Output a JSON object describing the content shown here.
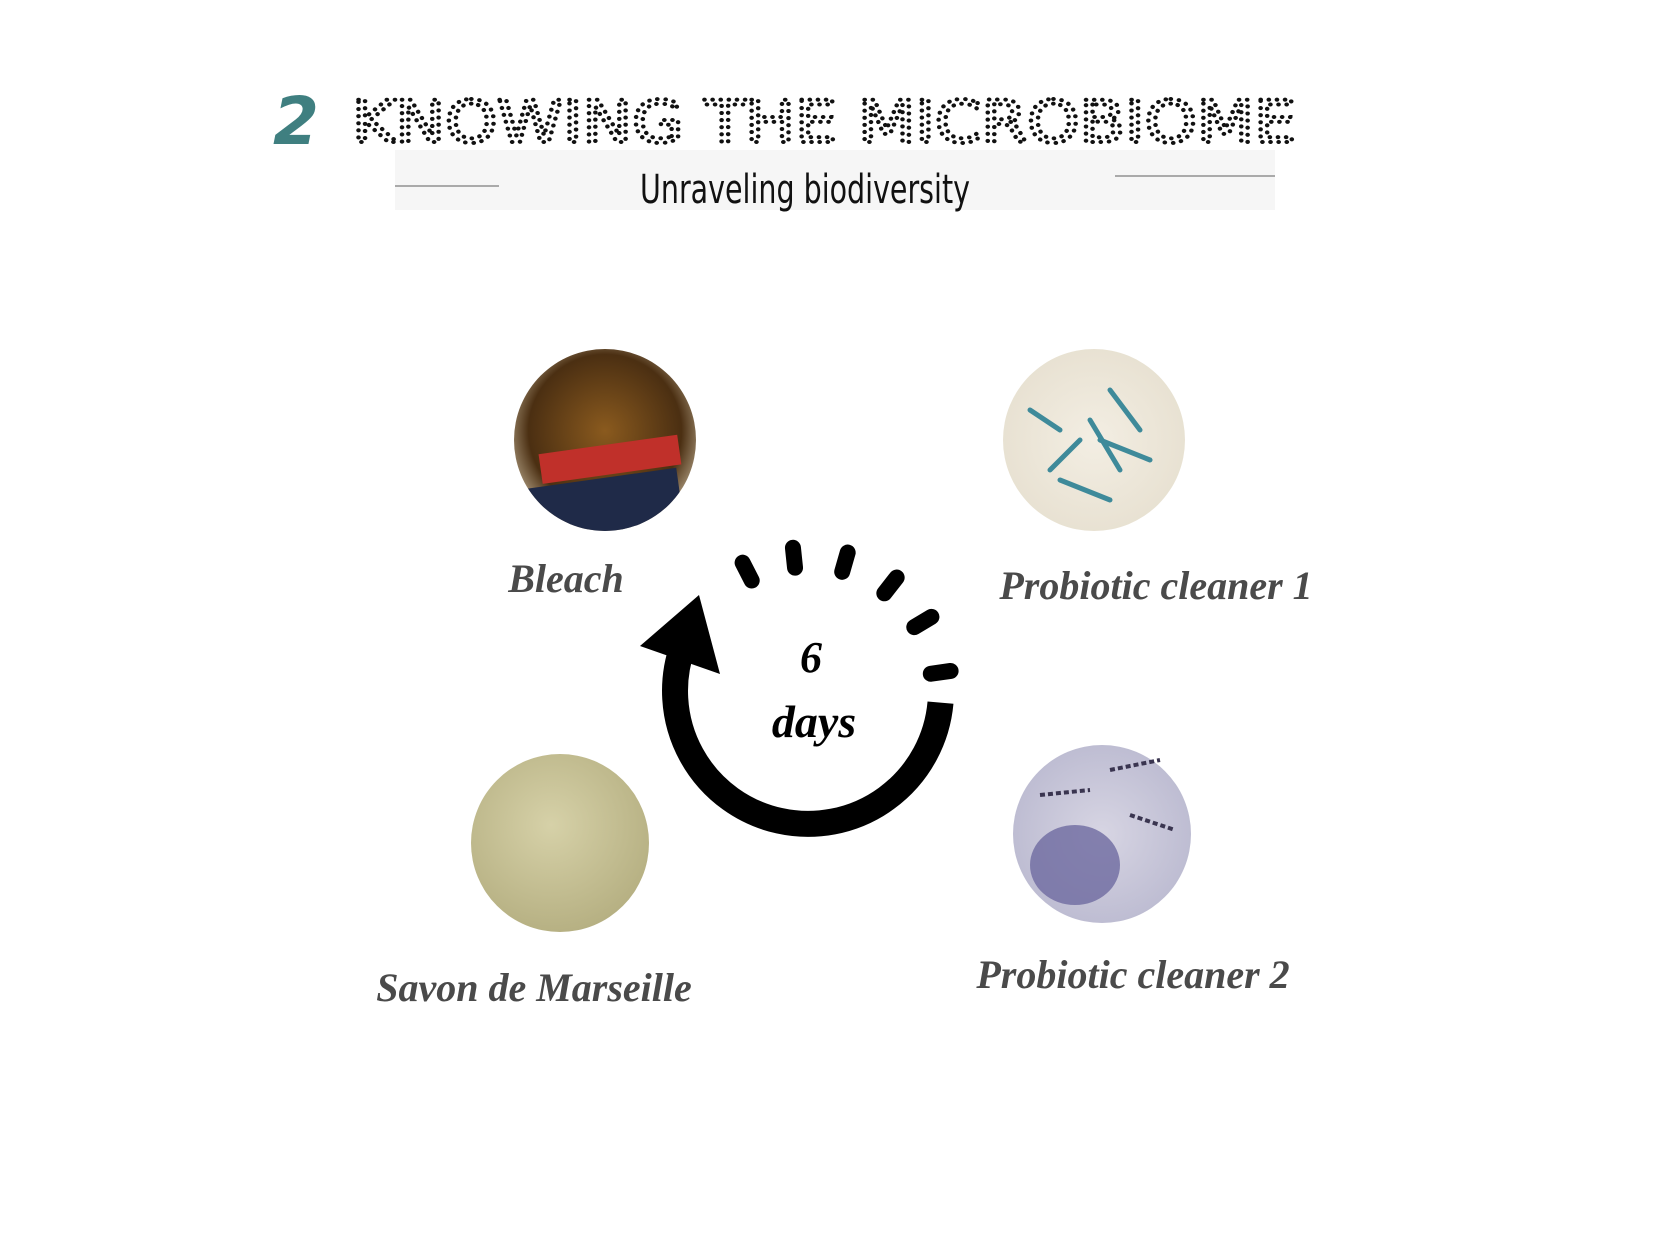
{
  "header": {
    "number": "2",
    "title": "KNOWING THE MICROBIOME",
    "subtitle": "Unraveling biodiversity"
  },
  "items": [
    {
      "label": "Bleach"
    },
    {
      "label": "Probiotic cleaner 1"
    },
    {
      "label": "Savon de Marseille"
    },
    {
      "label": "Probiotic cleaner 2"
    }
  ],
  "cycle": {
    "number": "6",
    "unit": "days"
  }
}
